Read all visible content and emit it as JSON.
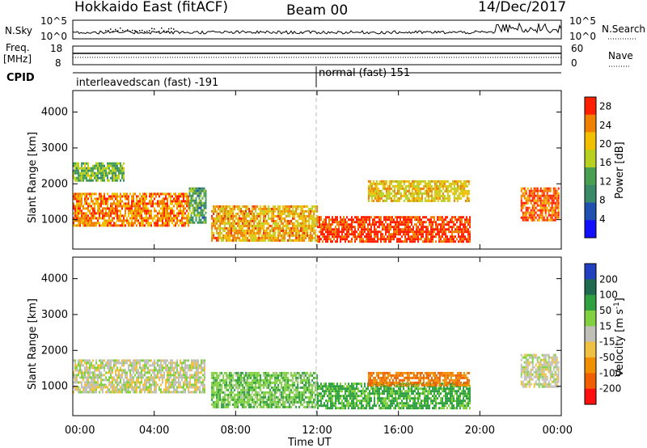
{
  "header": {
    "radar": "Hokkaido East (fitACF)",
    "beam": "Beam 00",
    "date": "14/Dec/2017"
  },
  "aux_panels": {
    "nsky_label": "N.Sky",
    "nsearch_label": "N.Search",
    "freq_label_1": "Freq.",
    "freq_label_2": "[MHz]",
    "nave_label": "Nave",
    "cpid_label": "CPID",
    "noise_ticks": [
      "10^5",
      "10^0"
    ],
    "freq_ticks": [
      "18",
      "8"
    ],
    "nave_ticks": [
      "60",
      "0"
    ],
    "cpid_segments": [
      {
        "name": "interleavedscan (fast)",
        "id": "-191",
        "start_hour": 0,
        "end_hour": 12
      },
      {
        "name": "normal (fast)",
        "id": "151",
        "start_hour": 12,
        "end_hour": 24
      }
    ]
  },
  "chart_data": [
    {
      "type": "heatmap",
      "title": "Power",
      "xlabel": "Time UT",
      "ylabel": "Slant Range [km]",
      "xlim": [
        0,
        24
      ],
      "ylim": [
        180,
        4600
      ],
      "x_ticks": [
        "00:00",
        "04:00",
        "08:00",
        "12:00",
        "16:00",
        "20:00",
        "00:00"
      ],
      "y_ticks": [
        1000,
        2000,
        3000,
        4000
      ],
      "colorbar": {
        "label": "Power [dB]",
        "ticks": [
          4,
          8,
          12,
          16,
          20,
          24,
          28
        ],
        "range": [
          0,
          30
        ],
        "colors": [
          "#1010ff",
          "#2050b0",
          "#3a8a6a",
          "#48a050",
          "#b8d020",
          "#f0c000",
          "#f08000",
          "#ff2000"
        ]
      },
      "regions": [
        {
          "t0": 0.0,
          "t1": 5.7,
          "r0": 850,
          "r1": 1750,
          "value": 24
        },
        {
          "t0": 5.7,
          "t1": 6.5,
          "r0": 900,
          "r1": 1900,
          "value": 12
        },
        {
          "t0": 6.8,
          "t1": 12.0,
          "r0": 450,
          "r1": 1400,
          "value": 22
        },
        {
          "t0": 12.0,
          "t1": 19.5,
          "r0": 380,
          "r1": 1100,
          "value": 28
        },
        {
          "t0": 14.5,
          "t1": 19.5,
          "r0": 1500,
          "r1": 2100,
          "value": 20
        },
        {
          "t0": 22.0,
          "t1": 23.9,
          "r0": 1000,
          "r1": 1900,
          "value": 26
        },
        {
          "t0": 0.0,
          "t1": 2.5,
          "r0": 2100,
          "r1": 2600,
          "value": 14
        }
      ]
    },
    {
      "type": "heatmap",
      "title": "Velocity",
      "xlabel": "Time UT",
      "ylabel": "Slant Range [km]",
      "xlim": [
        0,
        24
      ],
      "ylim": [
        180,
        4600
      ],
      "x_ticks": [
        "00:00",
        "04:00",
        "08:00",
        "12:00",
        "16:00",
        "20:00",
        "00:00"
      ],
      "y_ticks": [
        1000,
        2000,
        3000,
        4000
      ],
      "colorbar": {
        "label": "Velocity [m s^-1]",
        "ticks": [
          200,
          100,
          50,
          15,
          -15,
          -50,
          -100,
          -200
        ],
        "range": [
          -250,
          250
        ],
        "colors": [
          "#2040c0",
          "#206a50",
          "#30a040",
          "#80d040",
          "#c0c0b8",
          "#f0c040",
          "#f09000",
          "#f06000",
          "#ff1010"
        ]
      },
      "regions": [
        {
          "t0": 0.0,
          "t1": 6.5,
          "r0": 850,
          "r1": 1750,
          "value": 0
        },
        {
          "t0": 6.8,
          "t1": 12.0,
          "r0": 450,
          "r1": 1400,
          "value": 40
        },
        {
          "t0": 12.0,
          "t1": 19.5,
          "r0": 380,
          "r1": 1100,
          "value": 60
        },
        {
          "t0": 14.5,
          "t1": 19.5,
          "r0": 1000,
          "r1": 1400,
          "value": -100
        },
        {
          "t0": 22.0,
          "t1": 23.9,
          "r0": 1000,
          "r1": 1900,
          "value": 0
        }
      ]
    }
  ]
}
